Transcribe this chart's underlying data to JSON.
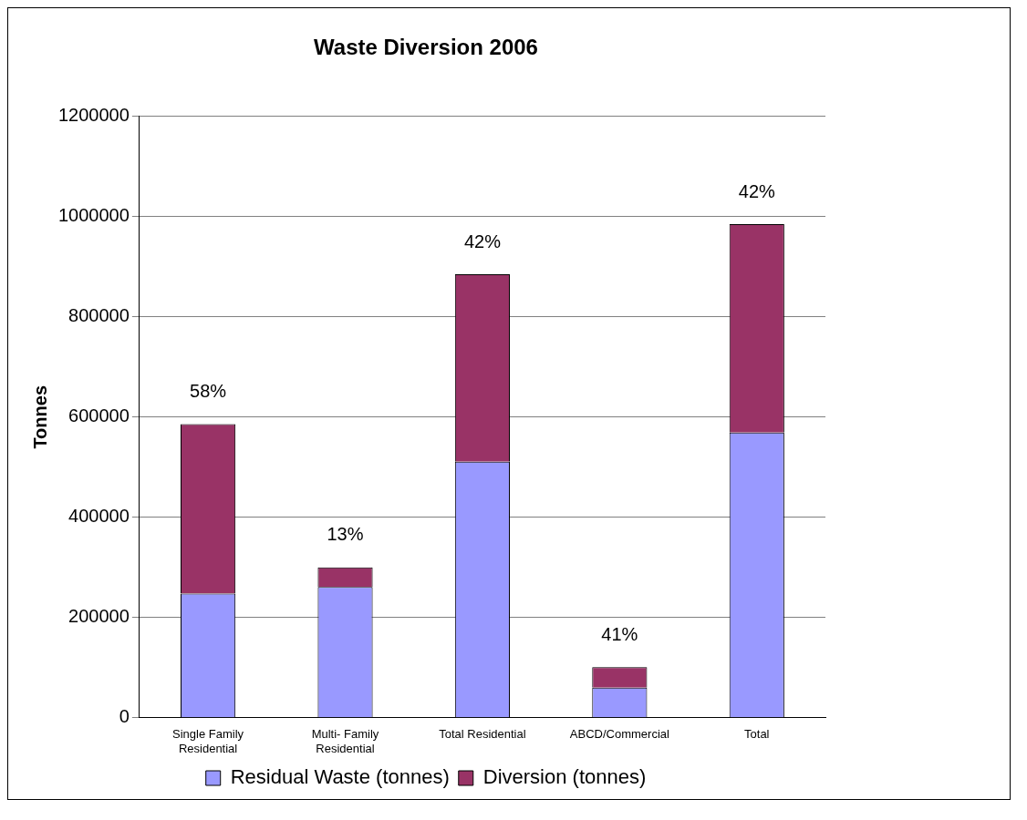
{
  "chart_data": {
    "type": "bar",
    "title": "Waste Diversion 2006",
    "ylabel": "Tonnes",
    "stacked": true,
    "categories": [
      "Single Family Residential",
      "Multi- Family Residential",
      "Total Residential",
      "ABCD/Commercial",
      "Total"
    ],
    "series": [
      {
        "name": "Residual Waste (tonnes)",
        "color": "#9999ff",
        "values": [
          248000,
          261000,
          511000,
          60000,
          569000
        ]
      },
      {
        "name": "Diversion (tonnes)",
        "color": "#993366",
        "values": [
          338000,
          39000,
          374000,
          41000,
          416000
        ]
      }
    ],
    "annotations": [
      {
        "text": "58%",
        "x": "Single Family Residential",
        "y": 586000
      },
      {
        "text": "13%",
        "x": "Multi- Family Residential",
        "y": 300000
      },
      {
        "text": "42%",
        "x": "Total Residential",
        "y": 885000
      },
      {
        "text": "41%",
        "x": "ABCD/Commercial",
        "y": 101000
      },
      {
        "text": "42%",
        "x": "Total",
        "y": 985000
      }
    ],
    "ylim": [
      0,
      1200000
    ],
    "yticks": [
      0,
      200000,
      400000,
      600000,
      800000,
      1000000,
      1200000
    ],
    "grid": "y",
    "legend": "bottom"
  }
}
